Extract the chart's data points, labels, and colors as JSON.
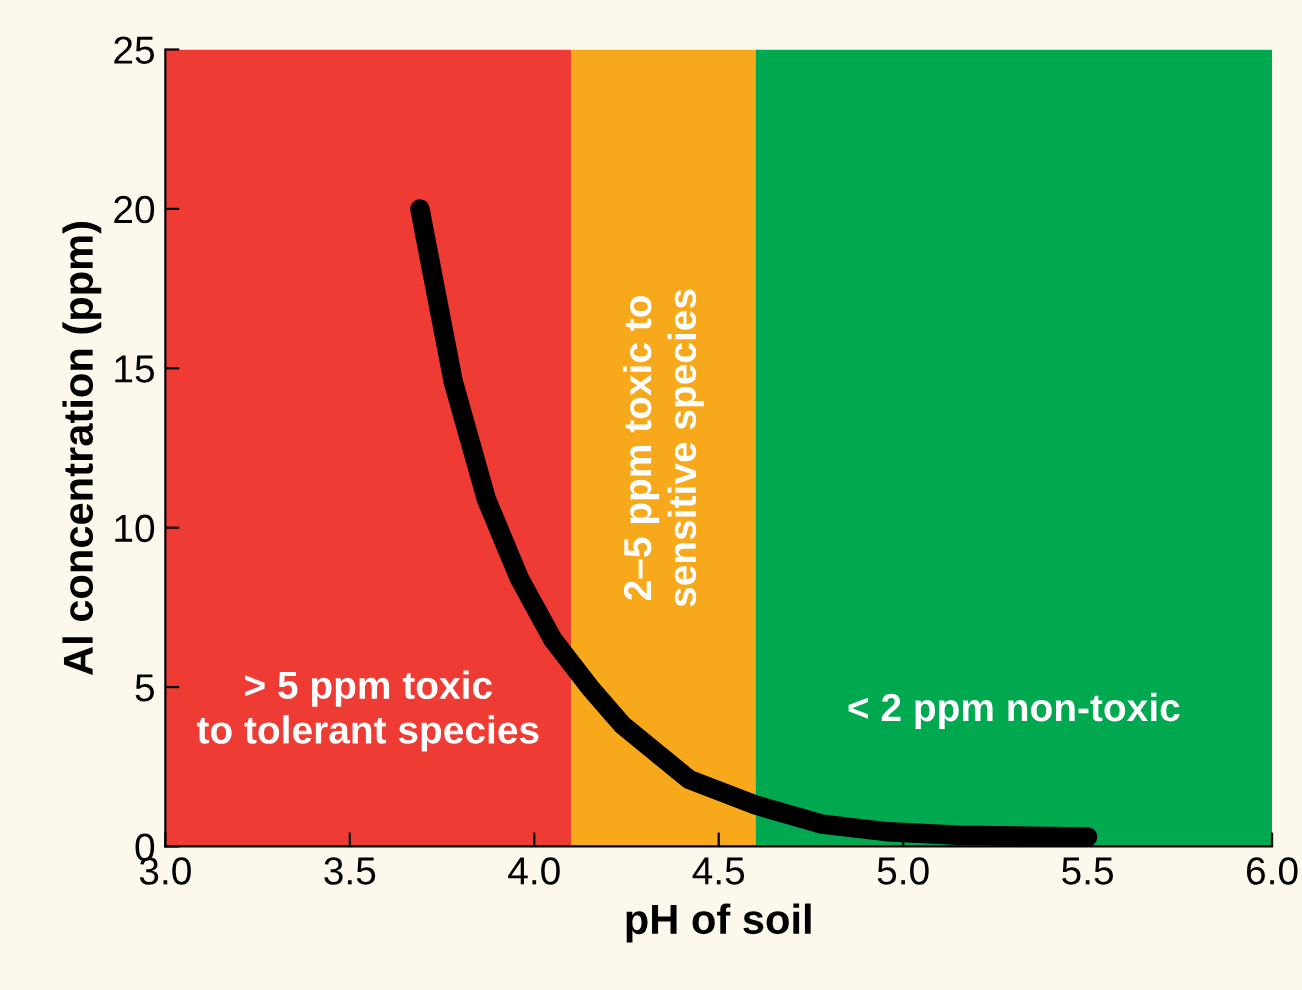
{
  "chart_data": {
    "type": "line",
    "xlabel": "pH of soil",
    "ylabel": "Al concentration (ppm)",
    "x": [
      3.69,
      3.78,
      3.87,
      3.96,
      4.05,
      4.15,
      4.24,
      4.42,
      4.6,
      4.78,
      4.96,
      5.15,
      5.5
    ],
    "series": [
      {
        "color": "#000000",
        "values": [
          20.0,
          14.6,
          10.9,
          8.4,
          6.5,
          5.0,
          3.8,
          2.1,
          1.3,
          0.7,
          0.46,
          0.35,
          0.3
        ]
      }
    ],
    "xlim": [
      3.0,
      6.0
    ],
    "ylim": [
      0,
      25
    ],
    "xticks": [
      {
        "value": 3.0,
        "label": "3.0"
      },
      {
        "value": 3.5,
        "label": "3.5"
      },
      {
        "value": 4.0,
        "label": "4.0"
      },
      {
        "value": 4.5,
        "label": "4.5"
      },
      {
        "value": 5.0,
        "label": "5.0"
      },
      {
        "value": 5.5,
        "label": "5.5"
      },
      {
        "value": 6.0,
        "label": "6.0"
      }
    ],
    "yticks": [
      0,
      5,
      10,
      15,
      20,
      25
    ],
    "bands": [
      {
        "axis": "x",
        "from": 3.0,
        "to": 4.1,
        "label": "> 5 ppm toxic\nto tolerant species",
        "color": "#ee3b33"
      },
      {
        "axis": "x",
        "from": 4.1,
        "to": 4.6,
        "label": "2–5 ppm toxic to\nsensitive species",
        "color": "#f7a81b"
      },
      {
        "axis": "x",
        "from": 4.6,
        "to": 6.0,
        "label": "< 2 ppm non-toxic",
        "color": "#00a94f"
      }
    ],
    "grid": false,
    "legend": false,
    "marker": "none",
    "line_style": "solid"
  }
}
